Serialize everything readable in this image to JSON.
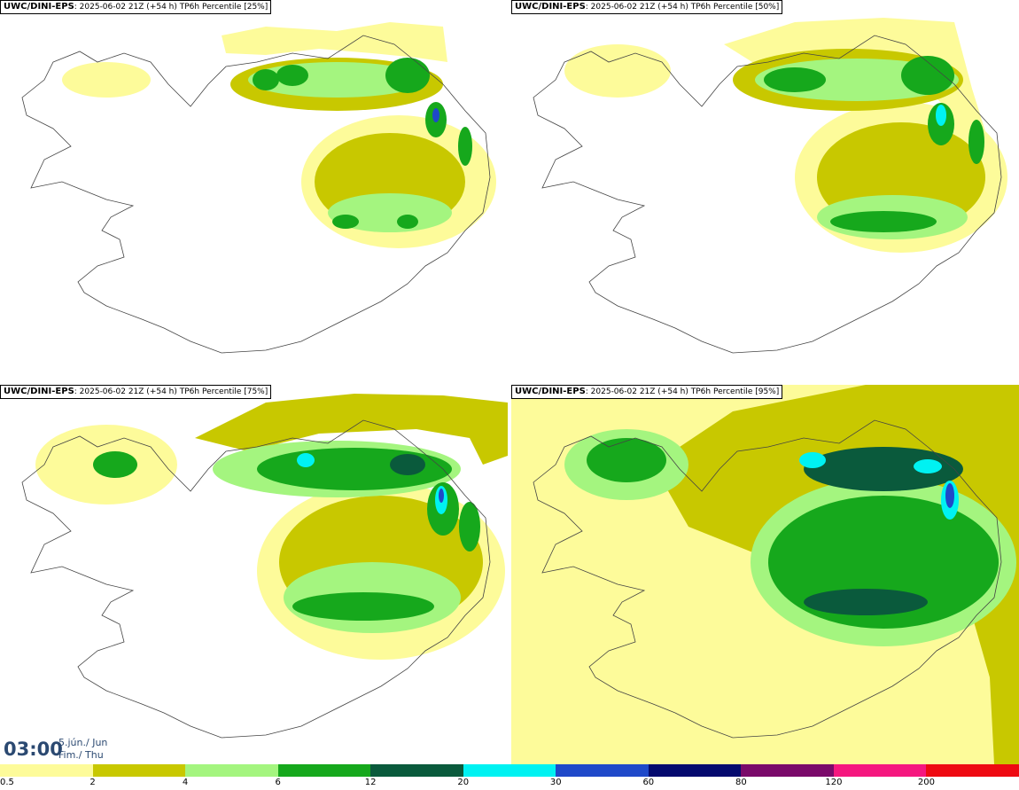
{
  "panels": [
    {
      "model": "UWC/DINI-EPS",
      "info": ": 2025-06-02 21Z (+54 h) TP6h Percentile [25%]"
    },
    {
      "model": "UWC/DINI-EPS",
      "info": ": 2025-06-02 21Z (+54 h) TP6h Percentile [50%]"
    },
    {
      "model": "UWC/DINI-EPS",
      "info": ": 2025-06-02 21Z (+54 h) TP6h Percentile [75%]"
    },
    {
      "model": "UWC/DINI-EPS",
      "info": ": 2025-06-02 21Z (+54 h) TP6h Percentile [95%]"
    }
  ],
  "time": {
    "clock": "03:00",
    "date_line1": "5.jún./ Jun",
    "date_line2": "Fim./ Thu"
  },
  "legend": {
    "colors": [
      "#fdfb9a",
      "#c8c800",
      "#a4f57f",
      "#16a81c",
      "#0a5a3c",
      "#00f2f2",
      "#1f49c9",
      "#040a6e",
      "#7a0a6a",
      "#f5177f",
      "#ee0a12"
    ],
    "labels": [
      "0.5",
      "2",
      "4",
      "6",
      "12",
      "20",
      "30",
      "60",
      "80",
      "120",
      "200"
    ]
  },
  "colors": {
    "light_yellow": "#fdfb9a",
    "olive": "#c8c800",
    "light_green": "#a4f57f",
    "green": "#16a81c",
    "dark_green": "#0a5a3c",
    "cyan": "#00f2f2",
    "blue": "#1f49c9"
  }
}
